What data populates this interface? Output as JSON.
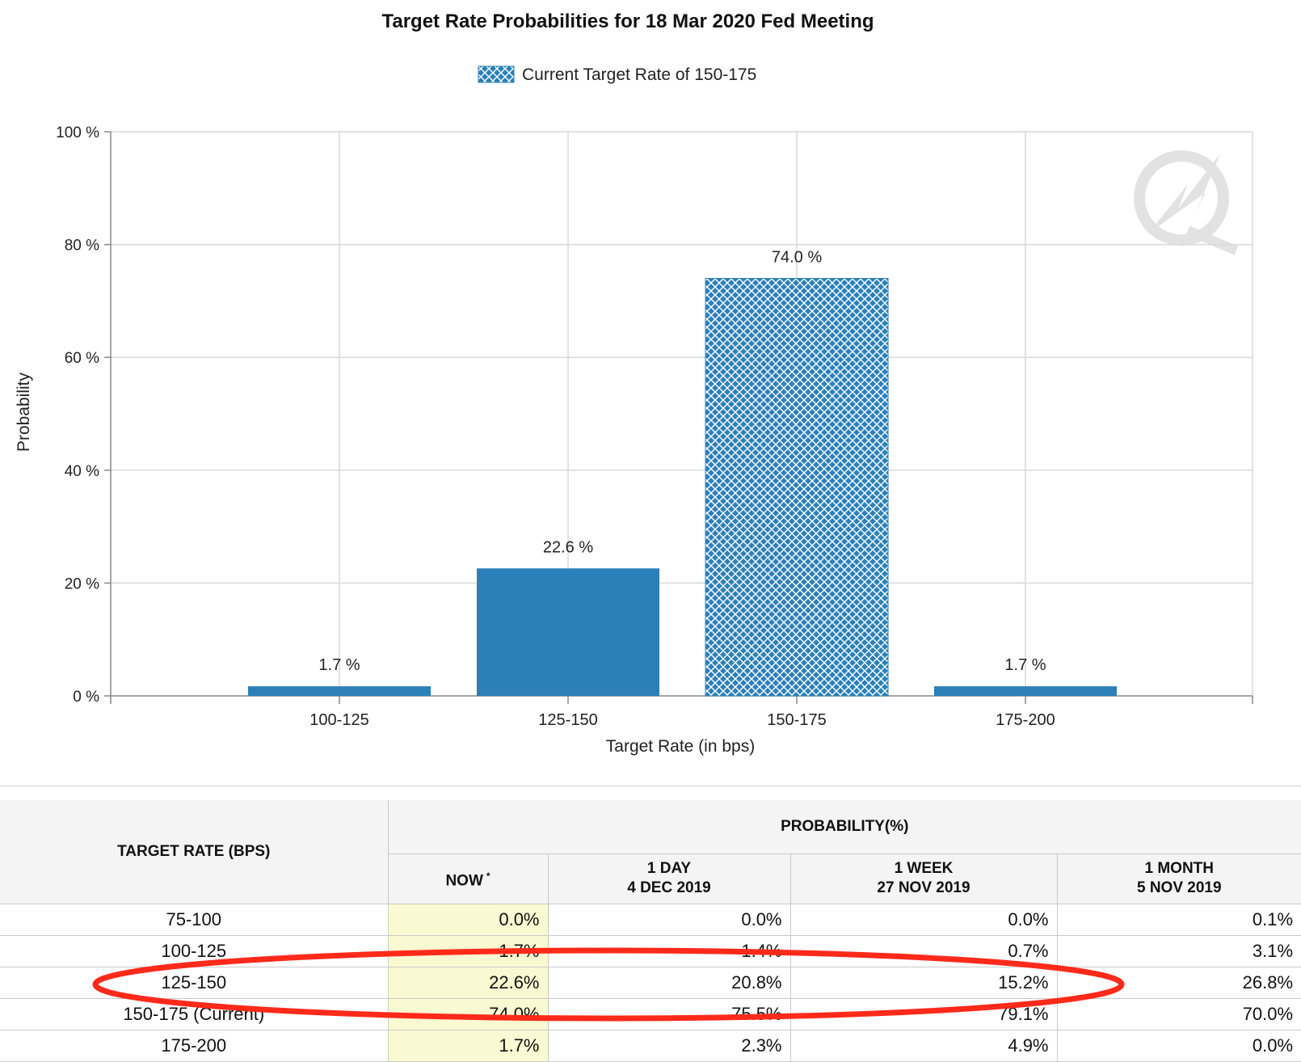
{
  "chart_data": {
    "type": "bar",
    "title": "Target Rate Probabilities for 18 Mar 2020 Fed Meeting",
    "legend": {
      "label": "Current Target Rate of 150-175",
      "placement": "top-center"
    },
    "xlabel": "Target Rate (in bps)",
    "ylabel": "Probability",
    "ylim": [
      0,
      100
    ],
    "yticks": [
      "0 %",
      "20 %",
      "40 %",
      "60 %",
      "80 %",
      "100 %"
    ],
    "grid": true,
    "categories": [
      "100-125",
      "125-150",
      "150-175",
      "175-200"
    ],
    "values": [
      1.7,
      22.6,
      74.0,
      1.7
    ],
    "data_labels": [
      "1.7 %",
      "22.6 %",
      "74.0 %",
      "1.7 %"
    ],
    "highlighted_category": "150-175",
    "colors": {
      "bar": "#2c80b9",
      "hatch": "#ffffff",
      "grid": "#d9d9d9"
    }
  },
  "table": {
    "row_header": "TARGET RATE (BPS)",
    "group_header": "PROBABILITY(%)",
    "columns": [
      {
        "line1": "NOW",
        "marker": "*",
        "line2": ""
      },
      {
        "line1": "1 DAY",
        "line2": "4 DEC 2019"
      },
      {
        "line1": "1 WEEK",
        "line2": "27 NOV 2019"
      },
      {
        "line1": "1 MONTH",
        "line2": "5 NOV 2019"
      }
    ],
    "rows": [
      {
        "rate": "75-100",
        "values": [
          "0.0%",
          "0.0%",
          "0.0%",
          "0.1%"
        ]
      },
      {
        "rate": "100-125",
        "values": [
          "1.7%",
          "1.4%",
          "0.7%",
          "3.1%"
        ]
      },
      {
        "rate": "125-150",
        "values": [
          "22.6%",
          "20.8%",
          "15.2%",
          "26.8%"
        ]
      },
      {
        "rate": "150-175 (Current)",
        "values": [
          "74.0%",
          "75.5%",
          "79.1%",
          "70.0%"
        ]
      },
      {
        "rate": "175-200",
        "values": [
          "1.7%",
          "2.3%",
          "4.9%",
          "0.0%"
        ]
      }
    ],
    "highlighted_row": "125-150",
    "colors": {
      "now_column": "#fafad2",
      "header_bg": "#f4f4f4",
      "annotation": "#ff2a1a"
    }
  }
}
